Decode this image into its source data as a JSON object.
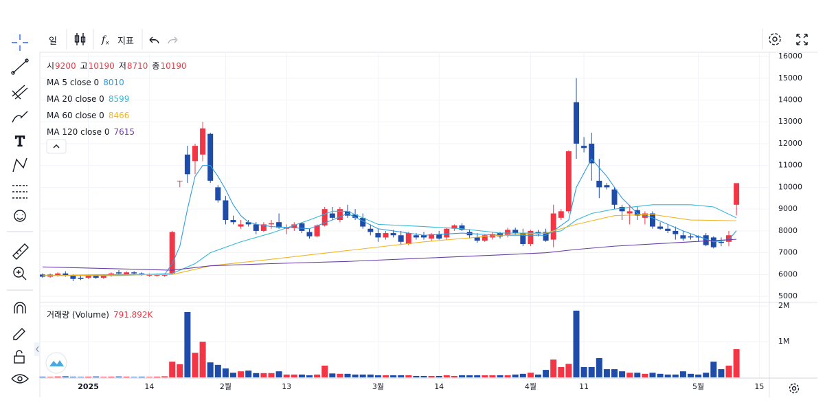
{
  "toolbar": {
    "interval": "일",
    "indicators": "지표"
  },
  "chart_data": {
    "type": "candlestick",
    "ohlc_labels": [
      "시",
      "고",
      "저",
      "종"
    ],
    "categories": [
      null,
      null,
      null,
      null,
      null,
      null,
      "2025",
      null,
      null,
      null,
      null,
      null,
      null,
      null,
      "14",
      null,
      null,
      null,
      null,
      null,
      null,
      null,
      null,
      null,
      "2월",
      null,
      null,
      null,
      null,
      null,
      null,
      null,
      "13",
      null,
      null,
      null,
      null,
      null,
      null,
      null,
      null,
      null,
      null,
      null,
      "3월",
      null,
      null,
      null,
      null,
      null,
      null,
      null,
      "14",
      null,
      null,
      null,
      null,
      null,
      null,
      null,
      null,
      null,
      null,
      null,
      "4월",
      null,
      null,
      null,
      null,
      null,
      null,
      "11",
      null,
      null,
      null,
      null,
      null,
      null,
      null,
      null,
      null,
      null,
      null,
      null,
      null,
      null,
      "5월",
      null,
      null,
      null,
      null,
      null,
      null,
      null,
      "15"
    ],
    "open": [
      6000,
      5900,
      5950,
      6050,
      5950,
      5850,
      5850,
      5950,
      5850,
      5950,
      6100,
      6000,
      6100,
      6050,
      5950,
      5950,
      5950,
      6050,
      10300,
      11500,
      11200,
      11500,
      12450,
      10000,
      9400,
      8500,
      8200,
      8400,
      8300,
      8000,
      8300,
      8400,
      8100,
      8150,
      8350,
      7950,
      7750,
      8250,
      8800,
      8500,
      8900,
      8750,
      8600,
      8100,
      7900,
      7700,
      7900,
      7800,
      7400,
      7800,
      7800,
      7650,
      7850,
      7700,
      8100,
      8250,
      7950,
      7700,
      7550,
      7700,
      7900,
      7800,
      8050,
      7900,
      7400,
      7950,
      7950,
      7600,
      8600,
      8900,
      13900,
      11900,
      12000,
      10300,
      10100,
      9900,
      9100,
      8800,
      8950,
      8600,
      8800,
      8200,
      8100,
      8000,
      7800,
      7750,
      7750,
      7800,
      7700,
      7500,
      7500,
      9200,
      null,
      null,
      null
    ],
    "high": [
      6050,
      6050,
      6100,
      6150,
      6000,
      5950,
      6000,
      6000,
      6000,
      6100,
      6200,
      6150,
      6150,
      6100,
      6050,
      6050,
      6050,
      8000,
      10300,
      11900,
      12000,
      13000,
      12500,
      10100,
      9600,
      8700,
      8500,
      8500,
      8400,
      8400,
      8500,
      8800,
      8300,
      8400,
      8400,
      8100,
      8300,
      9100,
      9100,
      9100,
      9200,
      9000,
      8800,
      8300,
      8100,
      8000,
      8050,
      8000,
      7950,
      7900,
      7950,
      7900,
      8000,
      8150,
      8300,
      8350,
      8050,
      7900,
      7850,
      7950,
      7950,
      8150,
      8150,
      8100,
      8050,
      8050,
      8100,
      9200,
      9000,
      11700,
      15000,
      12300,
      12500,
      11300,
      10200,
      10000,
      9200,
      9200,
      9100,
      8900,
      8900,
      8400,
      8300,
      8200,
      8000,
      7850,
      7800,
      7900,
      7750,
      7700,
      8000,
      10190,
      null,
      null,
      null
    ],
    "low": [
      5850,
      5850,
      5900,
      5900,
      5700,
      5750,
      5800,
      5800,
      5800,
      5900,
      6000,
      5950,
      6000,
      5950,
      5900,
      5900,
      5900,
      6000,
      10000,
      10200,
      10600,
      11200,
      10200,
      9300,
      8300,
      8300,
      8100,
      8200,
      7850,
      7950,
      8100,
      8100,
      7850,
      8000,
      7900,
      7650,
      7700,
      8200,
      8500,
      8400,
      8600,
      8500,
      8100,
      7800,
      7500,
      7600,
      7700,
      7350,
      7350,
      7600,
      7600,
      7550,
      7600,
      7600,
      8000,
      8000,
      7650,
      7450,
      7500,
      7600,
      7650,
      7700,
      7800,
      7300,
      7300,
      7750,
      7500,
      7250,
      8500,
      8800,
      11300,
      11600,
      10300,
      9500,
      9900,
      9000,
      8500,
      8300,
      8500,
      8300,
      8100,
      8050,
      7900,
      7600,
      7550,
      7600,
      7500,
      7300,
      7200,
      7300,
      7300,
      8710,
      null,
      null,
      null
    ],
    "close": [
      5900,
      6000,
      6050,
      5950,
      5800,
      5800,
      5950,
      5850,
      5950,
      6050,
      6050,
      6100,
      6050,
      6000,
      6000,
      6000,
      6000,
      7950,
      10300,
      10600,
      11900,
      12700,
      10300,
      9400,
      8500,
      8400,
      8300,
      8300,
      8000,
      8300,
      8350,
      8150,
      8150,
      8300,
      8000,
      7750,
      8250,
      9000,
      8600,
      9000,
      8700,
      8600,
      8200,
      7950,
      7700,
      7900,
      7800,
      7500,
      7900,
      7700,
      7700,
      7850,
      7650,
      8100,
      8250,
      8050,
      7800,
      7550,
      7800,
      7850,
      7750,
      8050,
      7900,
      7400,
      8000,
      7850,
      7550,
      8800,
      8900,
      11650,
      12000,
      11800,
      11100,
      10000,
      10000,
      9200,
      8900,
      8900,
      8700,
      8800,
      8200,
      8100,
      8000,
      7850,
      7650,
      7700,
      7700,
      7350,
      7250,
      7450,
      7800,
      10190,
      null,
      null,
      null
    ],
    "volume": [
      20000,
      15000,
      25000,
      30000,
      20000,
      15000,
      20000,
      25000,
      15000,
      20000,
      25000,
      20000,
      15000,
      20000,
      15000,
      20000,
      30000,
      440000,
      370000,
      1830000,
      690000,
      1000000,
      420000,
      350000,
      250000,
      130000,
      170000,
      190000,
      120000,
      120000,
      120000,
      170000,
      80000,
      80000,
      80000,
      60000,
      80000,
      330000,
      110000,
      100000,
      100000,
      80000,
      80000,
      80000,
      60000,
      60000,
      60000,
      60000,
      60000,
      40000,
      40000,
      40000,
      40000,
      60000,
      40000,
      60000,
      60000,
      60000,
      60000,
      60000,
      60000,
      60000,
      80000,
      100000,
      130000,
      80000,
      210000,
      500000,
      290000,
      380000,
      1870000,
      290000,
      290000,
      540000,
      230000,
      230000,
      170000,
      130000,
      130000,
      100000,
      130000,
      100000,
      80000,
      80000,
      170000,
      100000,
      80000,
      130000,
      440000,
      230000,
      330000,
      791892,
      null,
      null,
      null
    ],
    "up_color": "#f23645",
    "down_color": "#1e4ca8",
    "series": [
      {
        "name": "MA 5 close 0",
        "color": "#2f9be0",
        "last": 8010,
        "x": [
          0,
          10,
          16,
          17,
          18,
          19,
          20,
          21,
          22,
          23,
          24,
          25,
          26,
          27,
          28,
          30,
          35,
          38,
          40,
          44,
          50,
          55,
          60,
          66,
          67,
          69,
          70,
          72,
          74,
          76,
          78,
          80,
          84,
          88,
          90,
          91
        ],
        "values": [
          5950,
          6000,
          6000,
          6500,
          7300,
          9000,
          10500,
          11000,
          11000,
          10500,
          9900,
          9200,
          8700,
          8400,
          8300,
          8200,
          8100,
          8500,
          8800,
          8100,
          7800,
          7900,
          7800,
          7800,
          8000,
          8500,
          10000,
          11300,
          10500,
          9500,
          8800,
          8600,
          8000,
          7500,
          7600,
          8010
        ]
      },
      {
        "name": "MA 20 close 0",
        "color": "#34b8d8",
        "last": 8599,
        "x": [
          0,
          10,
          17,
          20,
          22,
          26,
          30,
          35,
          38,
          40,
          44,
          50,
          55,
          60,
          66,
          68,
          70,
          72,
          75,
          80,
          85,
          88,
          91
        ],
        "values": [
          5950,
          5950,
          6050,
          6500,
          7000,
          7500,
          7900,
          8500,
          8900,
          8900,
          8300,
          8200,
          8100,
          7900,
          7900,
          8000,
          8500,
          8800,
          9000,
          9200,
          9200,
          9100,
          8599
        ]
      },
      {
        "name": "MA 60 close 0",
        "color": "#f2b624",
        "last": 8466,
        "x": [
          0,
          17,
          22,
          30,
          40,
          50,
          60,
          66,
          70,
          75,
          80,
          85,
          91
        ],
        "values": [
          5950,
          6000,
          6400,
          6700,
          7100,
          7500,
          7800,
          7900,
          8300,
          8700,
          8750,
          8500,
          8466
        ]
      },
      {
        "name": "MA 120 close 0",
        "color": "#6b3fa8",
        "last": 7615,
        "x": [
          0,
          17,
          22,
          30,
          40,
          50,
          60,
          66,
          70,
          75,
          80,
          85,
          91
        ],
        "values": [
          6350,
          6200,
          6400,
          6500,
          6600,
          6750,
          6900,
          7000,
          7150,
          7300,
          7400,
          7500,
          7615
        ]
      }
    ],
    "ylim": [
      4720,
      16190
    ],
    "yticks": [
      5000,
      6000,
      7000,
      8000,
      9000,
      10000,
      11000,
      12000,
      13000,
      14000,
      15000,
      16000
    ],
    "grid": true,
    "volume_title": "거래량 (Volume)",
    "volume_label": "791.892K",
    "volume_ylim": [
      0,
      2080000
    ],
    "volume_yticks": [
      {
        "value": 1000000,
        "label": "1M"
      },
      {
        "value": 2000000,
        "label": "2M"
      }
    ]
  }
}
